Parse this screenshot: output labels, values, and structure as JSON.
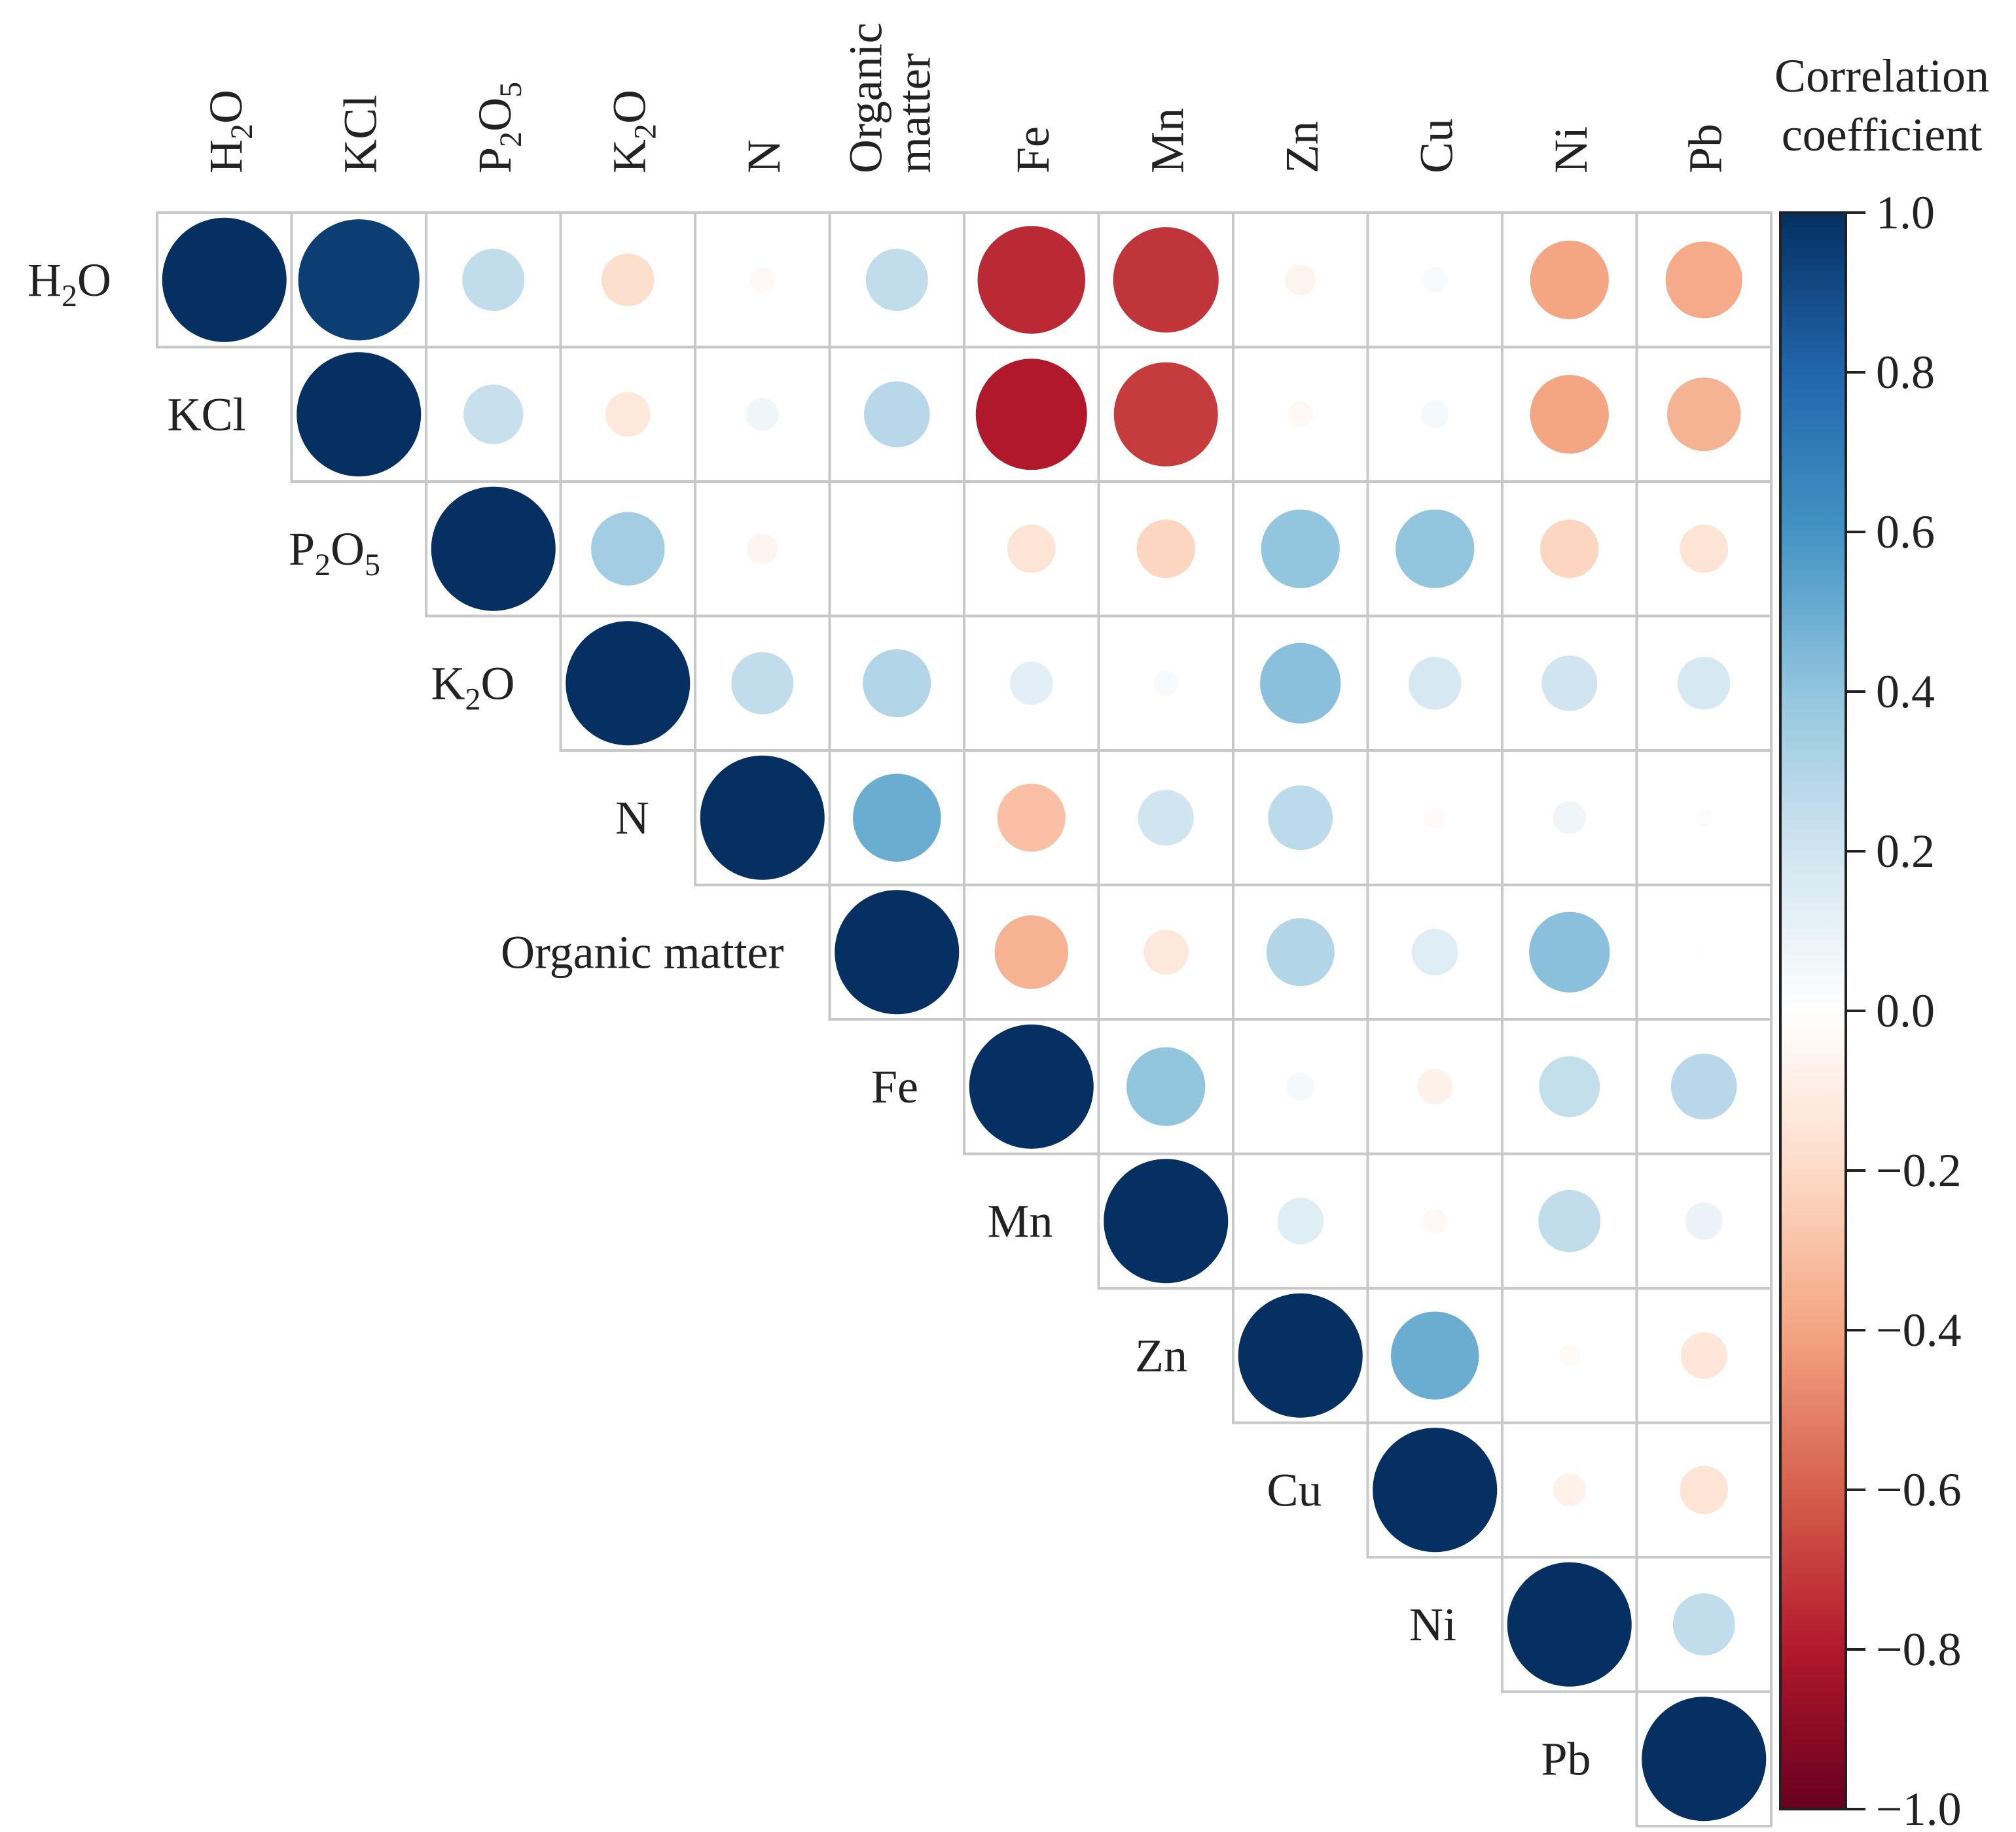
{
  "chart_data": {
    "type": "heatmap",
    "style": "correlation-circle-upper-triangle",
    "variables": [
      "H2O",
      "KCl",
      "P2O5",
      "K2O",
      "N",
      "Organic matter",
      "Fe",
      "Mn",
      "Zn",
      "Cu",
      "Ni",
      "Pb"
    ],
    "top_labels": [
      [
        "H",
        "2",
        "O"
      ],
      [
        "KCl"
      ],
      [
        "P",
        "2",
        "O",
        "5"
      ],
      [
        "K",
        "2",
        "O"
      ],
      [
        "N"
      ],
      [
        "Organic",
        "matter"
      ],
      [
        "Fe"
      ],
      [
        "Mn"
      ],
      [
        "Zn"
      ],
      [
        "Cu"
      ],
      [
        "Ni"
      ],
      [
        "Pb"
      ]
    ],
    "diag_labels": [
      [
        "H",
        "2",
        "O"
      ],
      [
        "KCl"
      ],
      [
        "P",
        "2",
        "O",
        "5"
      ],
      [
        "K",
        "2",
        "O"
      ],
      [
        "N"
      ],
      [
        "Organic matter"
      ],
      [
        "Fe"
      ],
      [
        "Mn"
      ],
      [
        "Zn"
      ],
      [
        "Cu"
      ],
      [
        "Ni"
      ],
      [
        "Pb"
      ]
    ],
    "matrix": [
      [
        1.0,
        0.95,
        0.25,
        -0.18,
        -0.04,
        0.25,
        -0.75,
        -0.72,
        -0.06,
        0.04,
        -0.4,
        -0.38
      ],
      [
        null,
        1.0,
        0.23,
        -0.13,
        0.07,
        0.28,
        -0.8,
        -0.7,
        -0.04,
        0.05,
        -0.4,
        -0.35
      ],
      [
        null,
        null,
        1.0,
        0.35,
        -0.06,
        0.0,
        -0.15,
        -0.22,
        0.4,
        0.4,
        -0.22,
        -0.15
      ],
      [
        null,
        null,
        null,
        1.0,
        0.25,
        0.3,
        0.12,
        0.04,
        0.42,
        0.18,
        0.2,
        0.18
      ],
      [
        null,
        null,
        null,
        null,
        1.0,
        0.5,
        -0.3,
        0.2,
        0.27,
        -0.03,
        0.07,
        0.02
      ],
      [
        null,
        null,
        null,
        null,
        null,
        1.0,
        -0.35,
        -0.13,
        0.3,
        0.14,
        0.42,
        0.01
      ],
      [
        null,
        null,
        null,
        null,
        null,
        null,
        1.0,
        0.4,
        0.05,
        -0.08,
        0.24,
        0.28
      ],
      [
        null,
        null,
        null,
        null,
        null,
        null,
        null,
        1.0,
        0.14,
        -0.04,
        0.25,
        0.09
      ],
      [
        null,
        null,
        null,
        null,
        null,
        null,
        null,
        null,
        1.0,
        0.5,
        -0.03,
        -0.14
      ],
      [
        null,
        null,
        null,
        null,
        null,
        null,
        null,
        null,
        null,
        1.0,
        -0.07,
        -0.15
      ],
      [
        null,
        null,
        null,
        null,
        null,
        null,
        null,
        null,
        null,
        null,
        1.0,
        0.25
      ],
      [
        null,
        null,
        null,
        null,
        null,
        null,
        null,
        null,
        null,
        null,
        null,
        1.0
      ]
    ],
    "colorbar": {
      "title": [
        "Correlation",
        "coefficient"
      ],
      "range": [
        -1.0,
        1.0
      ],
      "ticks": [
        "1.0",
        "0.8",
        "0.6",
        "0.4",
        "0.2",
        "0.0",
        "−0.2",
        "−0.4",
        "−0.6",
        "−0.8",
        "−1.0"
      ],
      "tick_values": [
        1.0,
        0.8,
        0.6,
        0.4,
        0.2,
        0.0,
        -0.2,
        -0.4,
        -0.6,
        -0.8,
        -1.0
      ],
      "colormap": "RdBu",
      "stops": [
        "#67001f",
        "#b2182b",
        "#d6604d",
        "#f4a582",
        "#fddbc7",
        "#ffffff",
        "#d1e5f0",
        "#92c5de",
        "#4393c3",
        "#2166ac",
        "#053061"
      ]
    },
    "grid_color": "#c8c8c8",
    "legend_position": "right"
  }
}
